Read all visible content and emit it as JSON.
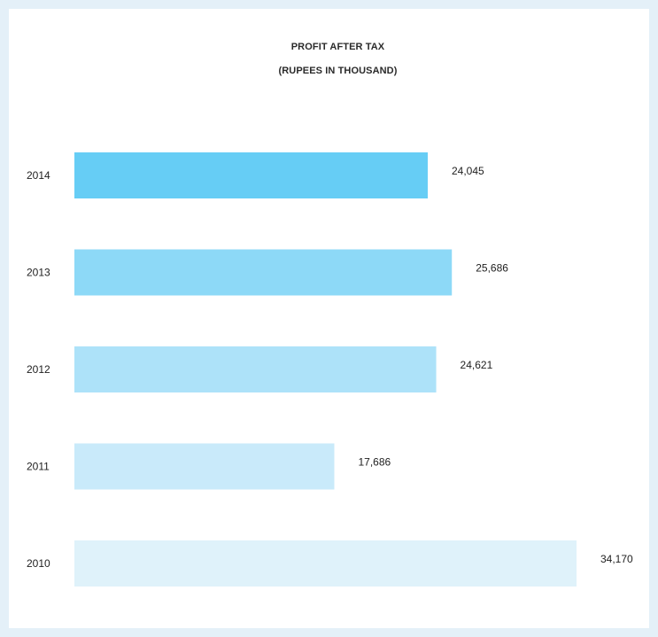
{
  "chart_data": {
    "type": "bar",
    "orientation": "horizontal",
    "title": "PROFIT AFTER TAX",
    "subtitle": "(RUPEES IN THOUSAND)",
    "categories": [
      "2014",
      "2013",
      "2012",
      "2011",
      "2010"
    ],
    "values": [
      24045,
      25686,
      24621,
      17686,
      34170
    ],
    "value_labels": [
      "24,045",
      "25,686",
      "24,621",
      "17,686",
      "34,170"
    ],
    "bar_colors": [
      "#66cdf5",
      "#8dd9f7",
      "#ade2f9",
      "#c9eafa",
      "#dff2fa"
    ],
    "xlabel": "",
    "ylabel": "",
    "grid": false,
    "legend": "none"
  }
}
